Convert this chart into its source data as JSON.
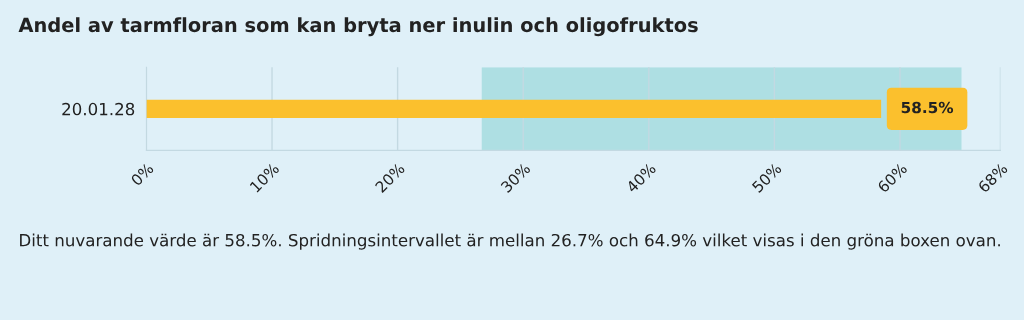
{
  "chart_data": {
    "type": "bar",
    "orientation": "horizontal",
    "title": "Andel av tarmfloran som kan bryta ner inulin och oligofruktos",
    "categories": [
      "20.01.28"
    ],
    "values": [
      58.5
    ],
    "color": "#fbc02d",
    "value_labels": [
      "58.5%"
    ],
    "xlim": [
      0,
      68
    ],
    "xticks": [
      {
        "value": 0,
        "label": "0%"
      },
      {
        "value": 10,
        "label": "10%"
      },
      {
        "value": 20,
        "label": "20%"
      },
      {
        "value": 30,
        "label": "30%"
      },
      {
        "value": 40,
        "label": "40%"
      },
      {
        "value": 50,
        "label": "50%"
      },
      {
        "value": 60,
        "label": "60%"
      },
      {
        "value": 68,
        "label": "68%"
      }
    ],
    "bands": [
      {
        "axis": "x",
        "from": 26.7,
        "to": 64.9,
        "color": "#aedfe3"
      }
    ],
    "grid": "x",
    "legend": false,
    "annotations": [
      "Ditt nuvarande värde är 58.5%. Spridningsintervallet är mellan 26.7% och 64.9% vilket visas i den gröna boxen ovan."
    ]
  }
}
